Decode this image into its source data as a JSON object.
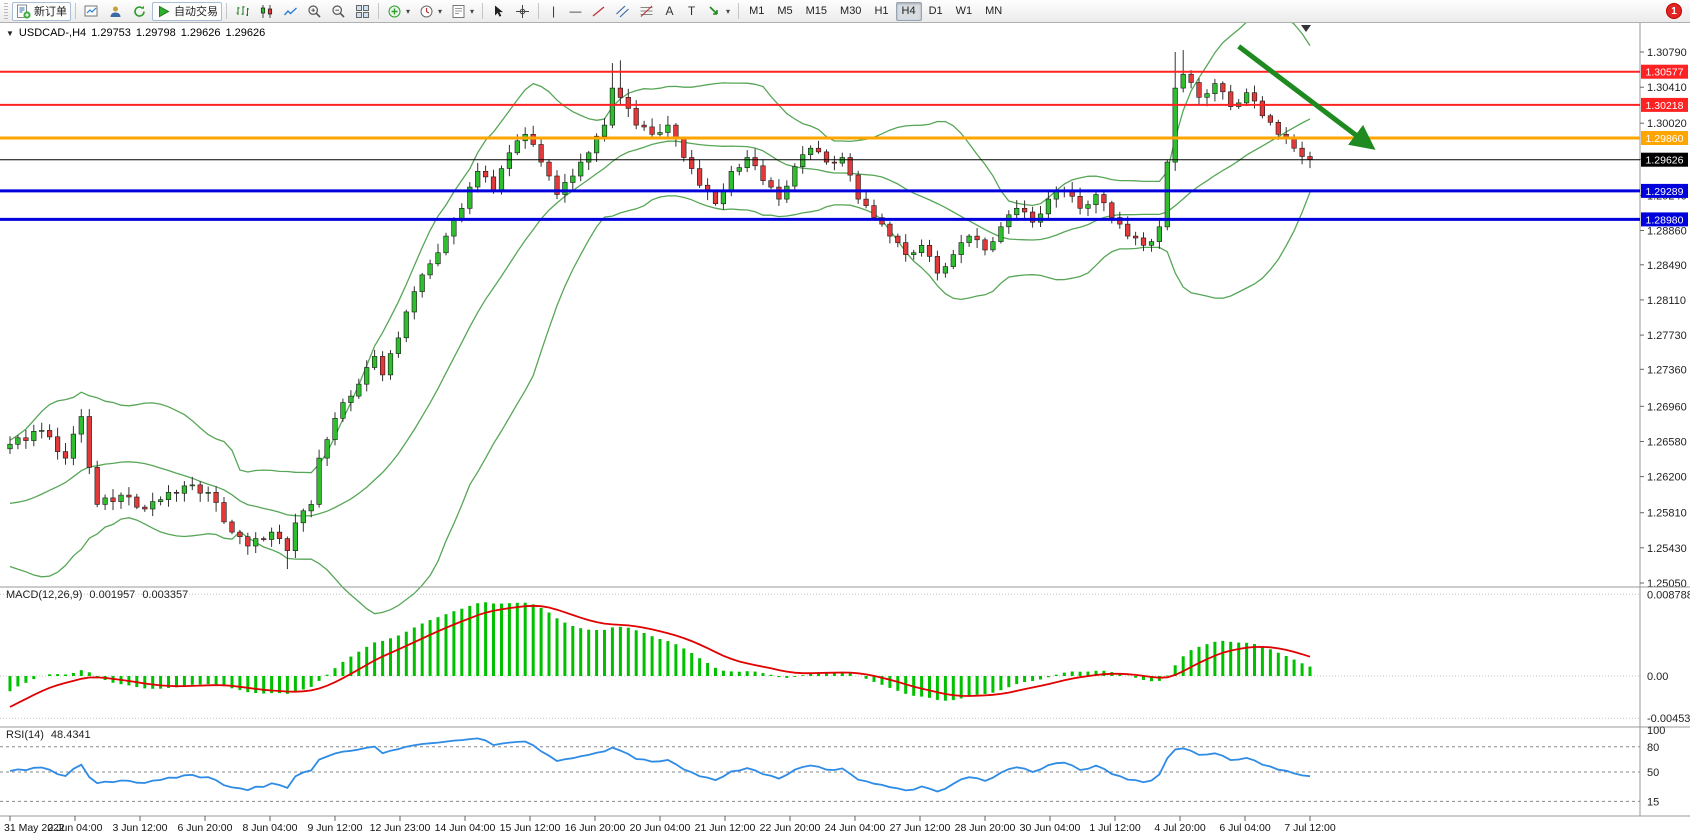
{
  "toolbar": {
    "new_order_label": "新订单",
    "autotrade_label": "自动交易",
    "timeframes": [
      "M1",
      "M5",
      "M15",
      "M30",
      "H1",
      "H4",
      "D1",
      "W1",
      "MN"
    ],
    "active_timeframe": "H4",
    "notification_count": "1"
  },
  "chart_title": {
    "symbol_period": "USDCAD-,H4",
    "open": "1.29753",
    "high": "1.29798",
    "low": "1.29626",
    "close": "1.29626"
  },
  "macd_panel": {
    "label": "MACD(12,26,9)",
    "value_main": "0.001957",
    "value_signal": "0.003357"
  },
  "rsi_panel": {
    "label": "RSI(14)",
    "value": "48.4341"
  },
  "colors": {
    "background": "#FFFFFF",
    "candle_up": "#2FBE2F",
    "candle_down": "#E23A3A",
    "wick": "#333333",
    "body_border": "#1A1A1A",
    "bollinger": "#57A657",
    "macd_histogram": "#00C000",
    "macd_signal": "#E00000",
    "rsi_line": "#2E8BE6",
    "resistance_line": "#FF2222",
    "support_line": "#0000DD",
    "pivot_line": "#FFA500",
    "price_line": "#000000",
    "arrow": "#1F8A1F"
  },
  "chart_data": {
    "type": "candlestick",
    "symbol": "USDCAD-",
    "period": "H4",
    "y_axis": {
      "min": 1.2505,
      "max": 1.3079,
      "ticks": [
        "1.30790",
        "1.30410",
        "1.30020",
        "1.29630",
        "1.29240",
        "1.28860",
        "1.28490",
        "1.28110",
        "1.27730",
        "1.27360",
        "1.26960",
        "1.26580",
        "1.26200",
        "1.25810",
        "1.25430",
        "1.25050"
      ]
    },
    "x_labels": [
      "31 May 2022",
      "2 Jun 04:00",
      "3 Jun 12:00",
      "6 Jun 20:00",
      "8 Jun 04:00",
      "9 Jun 12:00",
      "12 Jun 23:00",
      "14 Jun 04:00",
      "15 Jun 12:00",
      "16 Jun 20:00",
      "20 Jun 04:00",
      "21 Jun 12:00",
      "22 Jun 20:00",
      "24 Jun 04:00",
      "27 Jun 12:00",
      "28 Jun 20:00",
      "30 Jun 04:00",
      "1 Jul 12:00",
      "4 Jul 20:00",
      "6 Jul 04:00",
      "7 Jul 12:00"
    ],
    "warmup_closes": [
      1.279,
      1.2776,
      1.2762,
      1.2748,
      1.2734,
      1.272,
      1.2706,
      1.2692,
      1.2678,
      1.2664,
      1.265,
      1.2636,
      1.2622,
      1.2608,
      1.2594,
      1.258,
      1.2566,
      1.2552,
      1.254,
      1.2556,
      1.2549,
      1.2566,
      1.256,
      1.2578,
      1.2572,
      1.259,
      1.2601,
      1.2611,
      1.2635,
      1.265
    ],
    "first_open": 1.265,
    "closes": [
      1.2655,
      1.2662,
      1.2659,
      1.2669,
      1.267,
      1.2663,
      1.2647,
      1.264,
      1.2666,
      1.2685,
      1.263,
      1.259,
      1.2597,
      1.2593,
      1.26,
      1.2598,
      1.2587,
      1.2585,
      1.2593,
      1.2595,
      1.2603,
      1.2602,
      1.261,
      1.2611,
      1.2602,
      1.2603,
      1.2592,
      1.2571,
      1.256,
      1.2555,
      1.2545,
      1.2553,
      1.2552,
      1.256,
      1.2553,
      1.254,
      1.257,
      1.2583,
      1.259,
      1.264,
      1.266,
      1.2683,
      1.27,
      1.2707,
      1.272,
      1.2738,
      1.275,
      1.273,
      1.2753,
      1.277,
      1.2798,
      1.282,
      1.2838,
      1.285,
      1.2862,
      1.288,
      1.2898,
      1.291,
      1.2933,
      1.295,
      1.2944,
      1.293,
      1.2953,
      1.297,
      1.2983,
      1.299,
      1.2979,
      1.296,
      1.2945,
      1.2925,
      1.2938,
      1.2945,
      1.296,
      1.297,
      1.2988,
      1.3,
      1.304,
      1.303,
      1.3018,
      1.3,
      1.2998,
      1.299,
      1.2992,
      1.3,
      1.2985,
      1.2965,
      1.2953,
      1.2935,
      1.2928,
      1.2915,
      1.2929,
      1.295,
      1.2954,
      1.2965,
      1.2956,
      1.294,
      1.2933,
      1.292,
      1.2934,
      1.2955,
      1.2968,
      1.2975,
      1.2971,
      1.296,
      1.2959,
      1.2965,
      1.2946,
      1.292,
      1.2913,
      1.29,
      1.2893,
      1.288,
      1.2873,
      1.286,
      1.2862,
      1.287,
      1.2858,
      1.284,
      1.2847,
      1.286,
      1.2873,
      1.288,
      1.2876,
      1.2865,
      1.2874,
      1.289,
      1.2903,
      1.291,
      1.2906,
      1.2895,
      1.2904,
      1.292,
      1.2928,
      1.293,
      1.2923,
      1.291,
      1.2914,
      1.2925,
      1.2916,
      1.29,
      1.2893,
      1.288,
      1.2878,
      1.287,
      1.2874,
      1.289,
      1.296,
      1.304,
      1.3055,
      1.3046,
      1.303,
      1.3034,
      1.3045,
      1.3036,
      1.302,
      1.3024,
      1.3035,
      1.3026,
      1.301,
      1.3003,
      1.299,
      1.2986,
      1.2975,
      1.2966,
      1.29626
    ],
    "wick_overrides": {
      "9": {
        "h": 1.2693
      },
      "35": {
        "l": 1.252
      },
      "76": {
        "h": 1.3067
      },
      "77": {
        "h": 1.307
      },
      "147": {
        "h": 1.3079
      },
      "148": {
        "h": 1.3081
      }
    },
    "horizontal_lines": [
      {
        "price": 1.30577,
        "label": "1.30577",
        "color": "#FF2222",
        "width": 2
      },
      {
        "price": 1.30218,
        "label": "1.30218",
        "color": "#FF2222",
        "width": 2
      },
      {
        "price": 1.2986,
        "label": "1.29860",
        "color": "#FFA500",
        "width": 3
      },
      {
        "price": 1.29626,
        "label": "1.29626",
        "color": "#000000",
        "width": 1
      },
      {
        "price": 1.29289,
        "label": "1.29289",
        "color": "#0000DD",
        "width": 3
      },
      {
        "price": 1.2898,
        "label": "1.28980",
        "color": "#0000DD",
        "width": 3
      }
    ],
    "indicators": {
      "bollinger": {
        "period": 20,
        "deviations": 2
      },
      "macd": {
        "fast": 12,
        "slow": 26,
        "signal": 9,
        "current_main": 0.001957,
        "current_signal": 0.003357,
        "axis": [
          {
            "value": 0.008788,
            "label": "0.008788"
          },
          {
            "value": 0,
            "label": "0.00"
          },
          {
            "value": -0.004538,
            "label": "-0.004538"
          }
        ]
      },
      "rsi": {
        "period": 14,
        "current": 48.4341,
        "dashed_levels": [
          80,
          50,
          15
        ],
        "axis": [
          {
            "value": 100,
            "label": "100"
          },
          {
            "value": 80,
            "label": "80"
          },
          {
            "value": 50,
            "label": "50"
          },
          {
            "value": 15,
            "label": "15"
          }
        ]
      }
    },
    "annotations": {
      "arrow": {
        "from_bar": 155,
        "from_price": 1.3085,
        "to_bar": 171.5,
        "to_price": 1.2978,
        "color": "#1F8A1F"
      }
    }
  }
}
